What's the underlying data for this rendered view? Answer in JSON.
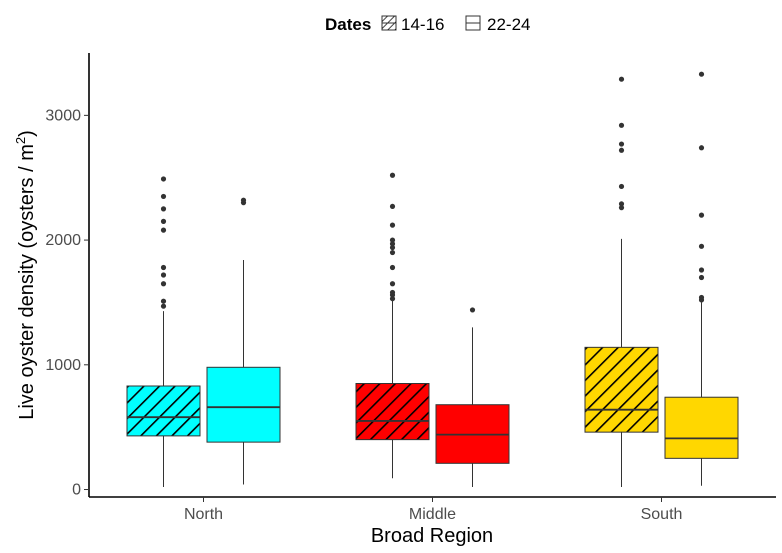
{
  "chart_data": {
    "type": "boxplot",
    "xlabel": "Broad Region",
    "ylabel_main": "Live oyster density (oysters / m",
    "ylabel_sup": "2",
    "ylabel_close": ")",
    "ylim": [
      -60,
      3500
    ],
    "yticks": [
      0,
      1000,
      2000,
      3000
    ],
    "yticklabels": [
      "0",
      "1000",
      "2000",
      "3000"
    ],
    "categories": [
      "North",
      "Middle",
      "South"
    ],
    "legend": {
      "title": "Dates",
      "placement": "top",
      "items": [
        {
          "label": "14-16",
          "pattern": "stripe"
        },
        {
          "label": "22-24",
          "pattern": "none"
        }
      ]
    },
    "colors": {
      "North": "#00FFFF",
      "Middle": "#FF0000",
      "South": "#FFD700"
    },
    "series": [
      {
        "name": "14-16",
        "pattern": "stripe",
        "boxes": [
          {
            "category": "North",
            "whisker_low": 20,
            "q1": 430,
            "median": 580,
            "q3": 830,
            "whisker_high": 1430,
            "outliers": [
              1470,
              1510,
              1650,
              1720,
              1780,
              2080,
              2150,
              2250,
              2350,
              2490
            ]
          },
          {
            "category": "Middle",
            "whisker_low": 90,
            "q1": 400,
            "median": 550,
            "q3": 850,
            "whisker_high": 1520,
            "outliers": [
              1530,
              1560,
              1580,
              1650,
              1780,
              1900,
              1940,
              1970,
              2000,
              2120,
              2270,
              2520
            ]
          },
          {
            "category": "South",
            "whisker_low": 20,
            "q1": 460,
            "median": 640,
            "q3": 1140,
            "whisker_high": 2010,
            "outliers": [
              2260,
              2290,
              2430,
              2720,
              2770,
              2920,
              3290
            ]
          }
        ]
      },
      {
        "name": "22-24",
        "pattern": "none",
        "boxes": [
          {
            "category": "North",
            "whisker_low": 40,
            "q1": 380,
            "median": 660,
            "q3": 980,
            "whisker_high": 1840,
            "outliers": [
              2300,
              2320
            ]
          },
          {
            "category": "Middle",
            "whisker_low": 20,
            "q1": 210,
            "median": 440,
            "q3": 680,
            "whisker_high": 1300,
            "outliers": [
              1440
            ]
          },
          {
            "category": "South",
            "whisker_low": 30,
            "q1": 250,
            "median": 410,
            "q3": 740,
            "whisker_high": 1500,
            "outliers": [
              1520,
              1540,
              1700,
              1760,
              1950,
              2200,
              2740,
              3330
            ]
          }
        ]
      }
    ]
  }
}
